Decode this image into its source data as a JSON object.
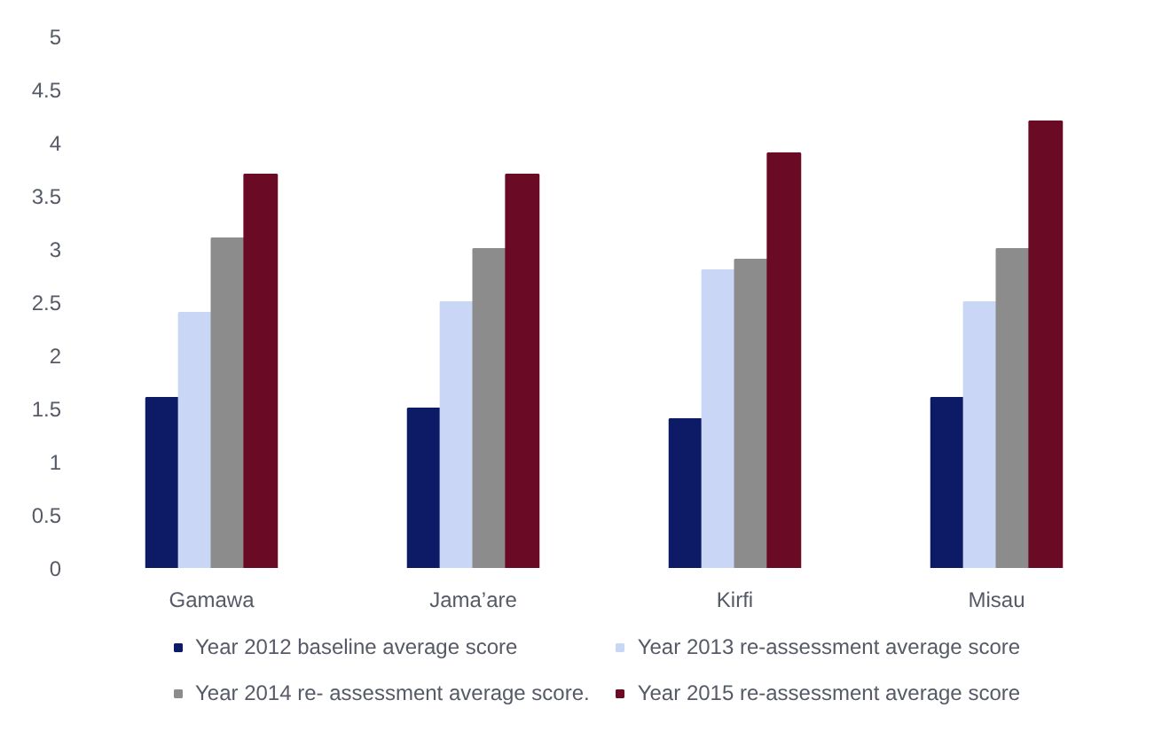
{
  "chart_data": {
    "type": "bar",
    "categories": [
      "Gamawa",
      "Jama’are",
      "Kirfi",
      "Misau"
    ],
    "series": [
      {
        "name": "Year 2012 baseline average score",
        "color": "#0d1a66",
        "values": [
          1.6,
          1.5,
          1.4,
          1.6
        ]
      },
      {
        "name": "Year 2013 re-assessment average score",
        "color": "#c9d6f5",
        "values": [
          2.4,
          2.5,
          2.8,
          2.5
        ]
      },
      {
        "name": "Year 2014 re- assessment average score.",
        "color": "#8c8c8c",
        "values": [
          3.1,
          3.0,
          2.9,
          3.0
        ]
      },
      {
        "name": "Year 2015 re-assessment average score",
        "color": "#6b0a24",
        "values": [
          3.7,
          3.7,
          3.9,
          4.2
        ]
      }
    ],
    "ylim": [
      0,
      5
    ],
    "yticks": [
      0,
      0.5,
      1,
      1.5,
      2,
      2.5,
      3,
      3.5,
      4,
      4.5,
      5
    ],
    "grid": false,
    "legend": "bottom"
  }
}
